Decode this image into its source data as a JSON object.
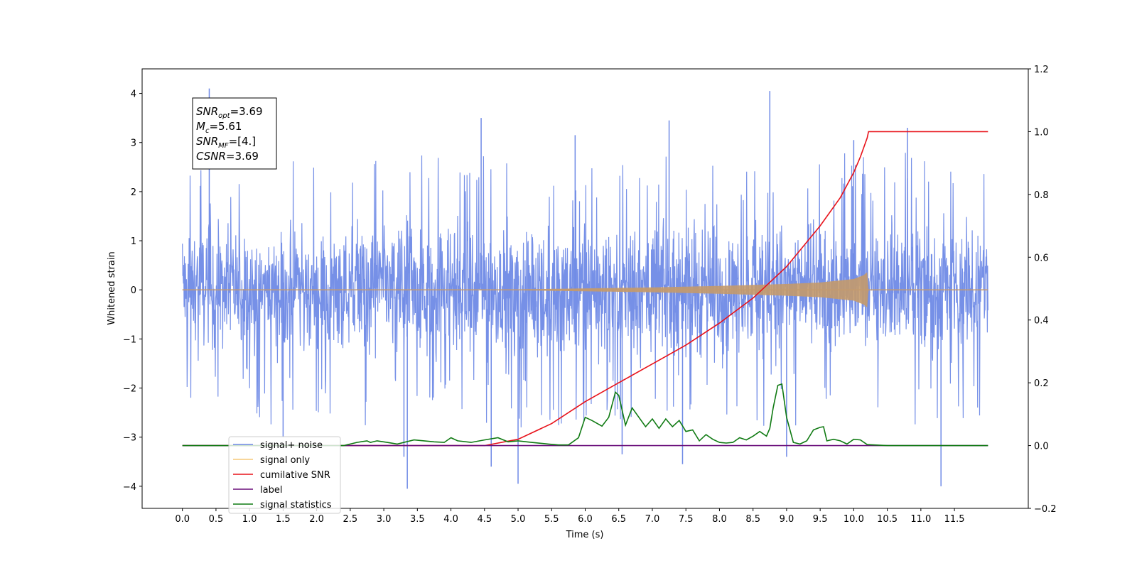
{
  "chart_data": {
    "type": "line",
    "title": "",
    "xlabel": "Time (s)",
    "ylabel": "Whitened strain",
    "y2label": "",
    "xlim": [
      -0.6,
      12.6
    ],
    "ylim": [
      -4.45,
      4.5
    ],
    "y2lim": [
      -0.2,
      1.2
    ],
    "xticks": [
      0.0,
      0.5,
      1.0,
      1.5,
      2.0,
      2.5,
      3.0,
      3.5,
      4.0,
      4.5,
      5.0,
      5.5,
      6.0,
      6.5,
      7.0,
      7.5,
      8.0,
      8.5,
      9.0,
      9.5,
      10.0,
      10.5,
      11.0,
      11.5
    ],
    "xtick_labels": [
      "0.0",
      "0.5",
      "1.0",
      "1.5",
      "2.0",
      "2.5",
      "3.0",
      "3.5",
      "4.0",
      "4.5",
      "5.0",
      "5.5",
      "6.0",
      "6.5",
      "7.0",
      "7.5",
      "8.0",
      "8.5",
      "9.0",
      "9.5",
      "10.0",
      "10.5",
      "11.0",
      "11.5"
    ],
    "yticks": [
      -4,
      -3,
      -2,
      -1,
      0,
      1,
      2,
      3,
      4
    ],
    "ytick_labels": [
      "−4",
      "−3",
      "−2",
      "−1",
      "0",
      "1",
      "2",
      "3",
      "4"
    ],
    "y2ticks": [
      -0.2,
      0.0,
      0.2,
      0.4,
      0.6,
      0.8,
      1.0,
      1.2
    ],
    "y2tick_labels": [
      "−0.2",
      "0.0",
      "0.2",
      "0.4",
      "0.6",
      "0.8",
      "1.0",
      "1.2"
    ],
    "grid": false,
    "legend_position": "lower-left",
    "annotation": {
      "lines": [
        {
          "base": "SNR",
          "sub": "opt",
          "value": "=3.69"
        },
        {
          "base": "M",
          "sub": "c",
          "value": "=5.61"
        },
        {
          "base": "SNR",
          "sub": "MF",
          "value": "=[4.]"
        },
        {
          "base": "CSNR",
          "sub": "",
          "value": "=3.69"
        }
      ]
    },
    "series": [
      {
        "name": "signal+ noise",
        "axis": "left",
        "color": "#6f8ae6",
        "kind": "noise-band",
        "x_range": [
          0.0,
          12.0
        ],
        "typical_upper": 2.2,
        "typical_lower": -1.8,
        "peaks": [
          {
            "x": 0.4,
            "y": 4.1
          },
          {
            "x": 8.75,
            "y": 4.05
          },
          {
            "x": 10.8,
            "y": 3.3
          },
          {
            "x": 4.45,
            "y": 3.5
          },
          {
            "x": 7.25,
            "y": 3.45
          },
          {
            "x": 3.35,
            "y": -4.05
          },
          {
            "x": 11.3,
            "y": -4.0
          },
          {
            "x": 5.0,
            "y": -3.95
          },
          {
            "x": 7.45,
            "y": -3.55
          },
          {
            "x": 3.3,
            "y": -3.4
          },
          {
            "x": 6.55,
            "y": -3.35
          },
          {
            "x": 9.0,
            "y": -3.4
          },
          {
            "x": 4.6,
            "y": -3.6
          },
          {
            "x": 1.5,
            "y": -3.0
          },
          {
            "x": 10.0,
            "y": 3.05
          },
          {
            "x": 5.85,
            "y": 3.15
          }
        ]
      },
      {
        "name": "signal only",
        "axis": "left",
        "color": "#f5c878",
        "kind": "chirp",
        "x_range": [
          0.0,
          12.0
        ],
        "amplitude": [
          [
            0.0,
            0.0
          ],
          [
            5.0,
            0.01
          ],
          [
            6.0,
            0.03
          ],
          [
            7.0,
            0.05
          ],
          [
            8.0,
            0.08
          ],
          [
            9.0,
            0.12
          ],
          [
            9.5,
            0.15
          ],
          [
            10.0,
            0.22
          ],
          [
            10.15,
            0.3
          ],
          [
            10.2,
            0.36
          ],
          [
            10.22,
            0.0
          ],
          [
            12.0,
            0.0
          ]
        ]
      },
      {
        "name": "cumilative SNR",
        "axis": "right",
        "color": "#e8121a",
        "x": [
          0.0,
          3.0,
          4.0,
          4.5,
          5.0,
          5.5,
          6.0,
          6.5,
          7.0,
          7.5,
          8.0,
          8.5,
          9.0,
          9.5,
          9.8,
          10.0,
          10.1,
          10.2,
          10.22,
          12.0
        ],
        "values": [
          0.0,
          0.0,
          0.0,
          0.0,
          0.02,
          0.07,
          0.14,
          0.2,
          0.26,
          0.32,
          0.39,
          0.47,
          0.57,
          0.7,
          0.79,
          0.87,
          0.92,
          0.98,
          1.0,
          1.0
        ]
      },
      {
        "name": "label",
        "axis": "right",
        "color": "#6a0f7a",
        "x": [
          0.0,
          12.0
        ],
        "values": [
          0.0,
          0.0
        ]
      },
      {
        "name": "signal statistics",
        "axis": "right",
        "color": "#0f7a12",
        "x": [
          0.0,
          2.0,
          2.4,
          2.6,
          2.75,
          2.8,
          2.9,
          3.05,
          3.2,
          3.45,
          3.6,
          3.75,
          3.9,
          4.0,
          4.1,
          4.3,
          4.5,
          4.7,
          4.85,
          5.0,
          5.2,
          5.45,
          5.6,
          5.75,
          5.9,
          6.0,
          6.1,
          6.25,
          6.35,
          6.45,
          6.5,
          6.6,
          6.7,
          6.8,
          6.9,
          7.0,
          7.1,
          7.2,
          7.3,
          7.4,
          7.5,
          7.6,
          7.7,
          7.8,
          7.9,
          8.0,
          8.1,
          8.2,
          8.3,
          8.4,
          8.5,
          8.6,
          8.7,
          8.75,
          8.8,
          8.87,
          8.93,
          9.0,
          9.1,
          9.2,
          9.3,
          9.4,
          9.5,
          9.55,
          9.6,
          9.7,
          9.8,
          9.9,
          10.0,
          10.1,
          10.2,
          10.5,
          12.0
        ],
        "values": [
          0.0,
          0.0,
          0.0,
          0.01,
          0.015,
          0.01,
          0.015,
          0.01,
          0.005,
          0.018,
          0.015,
          0.012,
          0.01,
          0.025,
          0.015,
          0.01,
          0.018,
          0.025,
          0.012,
          0.015,
          0.01,
          0.005,
          0.002,
          0.002,
          0.025,
          0.09,
          0.08,
          0.062,
          0.09,
          0.17,
          0.16,
          0.065,
          0.12,
          0.09,
          0.06,
          0.085,
          0.055,
          0.085,
          0.06,
          0.08,
          0.045,
          0.05,
          0.015,
          0.035,
          0.02,
          0.01,
          0.008,
          0.01,
          0.025,
          0.018,
          0.03,
          0.045,
          0.03,
          0.055,
          0.12,
          0.192,
          0.196,
          0.09,
          0.01,
          0.005,
          0.015,
          0.05,
          0.058,
          0.06,
          0.015,
          0.02,
          0.015,
          0.005,
          0.02,
          0.018,
          0.003,
          0.0,
          0.0
        ]
      }
    ],
    "legend_entries": [
      {
        "label": "signal+ noise",
        "color": "#6f8ae6"
      },
      {
        "label": "signal only",
        "color": "#f5c878"
      },
      {
        "label": "cumilative SNR",
        "color": "#e8121a"
      },
      {
        "label": "label",
        "color": "#6a0f7a"
      },
      {
        "label": "signal statistics",
        "color": "#0f7a12"
      }
    ]
  }
}
